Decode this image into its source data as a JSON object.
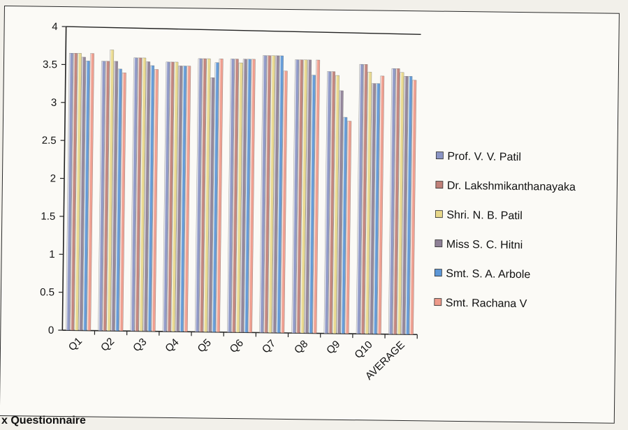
{
  "caption": "x Questionnaire",
  "chart_data": {
    "type": "bar",
    "title": "",
    "xlabel": "",
    "ylabel": "",
    "ylim": [
      0,
      4
    ],
    "yticks": [
      "0",
      "0.5",
      "1",
      "1.5",
      "2",
      "2.5",
      "3",
      "3.5",
      "4"
    ],
    "grid": false,
    "legend_position": "right",
    "categories": [
      "Q1",
      "Q2",
      "Q3",
      "Q4",
      "Q5",
      "Q6",
      "Q7",
      "Q8",
      "Q9",
      "Q10",
      "AVERAGE"
    ],
    "series": [
      {
        "name": "Prof. V. V. Patil",
        "color": "#8a94c4",
        "values": [
          3.65,
          3.55,
          3.6,
          3.55,
          3.6,
          3.6,
          3.65,
          3.6,
          3.45,
          3.55,
          3.5
        ]
      },
      {
        "name": "Dr. Lakshmikanthanayaka",
        "color": "#c08078",
        "values": [
          3.65,
          3.55,
          3.6,
          3.55,
          3.6,
          3.6,
          3.65,
          3.6,
          3.45,
          3.55,
          3.5
        ]
      },
      {
        "name": "Shri. N. B. Patil",
        "color": "#e8d88a",
        "values": [
          3.65,
          3.7,
          3.6,
          3.55,
          3.6,
          3.55,
          3.65,
          3.6,
          3.4,
          3.45,
          3.45
        ]
      },
      {
        "name": "Miss S. C. Hitni",
        "color": "#8e8096",
        "values": [
          3.6,
          3.55,
          3.55,
          3.5,
          3.35,
          3.6,
          3.65,
          3.6,
          3.2,
          3.3,
          3.4
        ]
      },
      {
        "name": "Smt. S. A. Arbole",
        "color": "#5c96d6",
        "values": [
          3.55,
          3.45,
          3.5,
          3.5,
          3.55,
          3.6,
          3.65,
          3.4,
          2.85,
          3.3,
          3.4
        ]
      },
      {
        "name": "Smt. Rachana V",
        "color": "#ee9a8a",
        "values": [
          3.65,
          3.4,
          3.45,
          3.5,
          3.6,
          3.6,
          3.45,
          3.6,
          2.8,
          3.4,
          3.35
        ]
      }
    ]
  }
}
